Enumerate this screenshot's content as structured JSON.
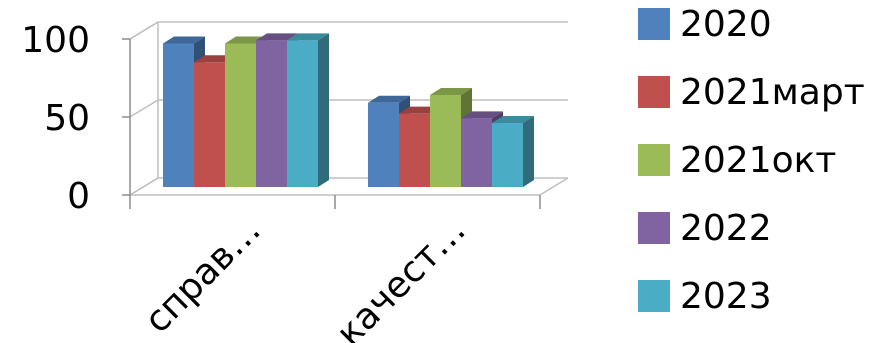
{
  "chart_data": {
    "type": "bar",
    "style": "3d-clustered-column",
    "categories": [
      "справ…",
      "качест…"
    ],
    "series": [
      {
        "name": "2020",
        "color": "#4F81BD",
        "values": [
          92,
          54
        ]
      },
      {
        "name": "2021март",
        "color": "#C0504D",
        "values": [
          80,
          47
        ]
      },
      {
        "name": "2021окт",
        "color": "#9BBB59",
        "values": [
          92,
          59
        ]
      },
      {
        "name": "2022",
        "color": "#8064A2",
        "values": [
          94,
          44
        ]
      },
      {
        "name": "2023",
        "color": "#4BACC6",
        "values": [
          94,
          41
        ]
      }
    ],
    "yticks": [
      "0",
      "50",
      "100"
    ],
    "ylim": [
      0,
      100
    ],
    "grid": true,
    "legend": "right"
  }
}
